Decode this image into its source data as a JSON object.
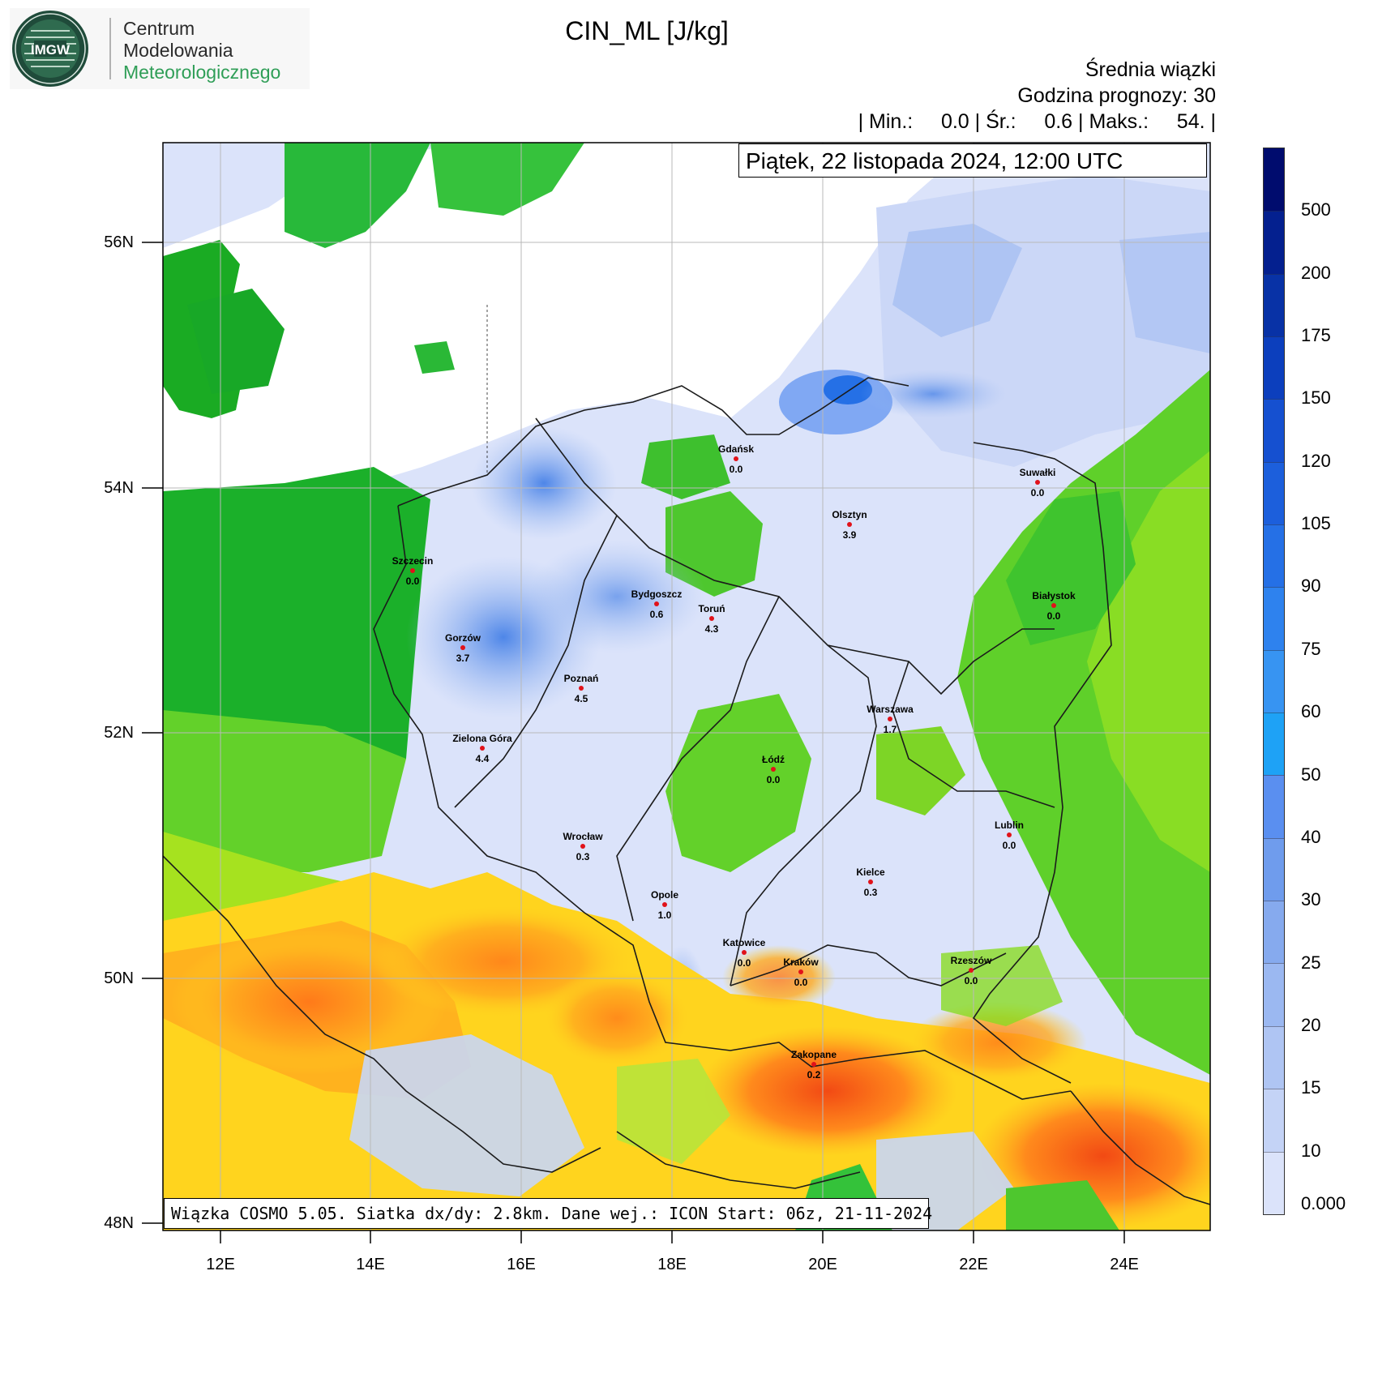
{
  "header": {
    "org_line1": "Centrum",
    "org_line2": "Modelowania",
    "org_line3": "Meteorologicznego",
    "logo_text": "IMGW"
  },
  "title": "CIN_ML [J/kg]",
  "info": {
    "line1": "Średnia wiązki",
    "line2": "Godzina prognozy: 30",
    "line3": "| Min.:     0.0 | Śr.:     0.6 | Maks.:     54. |"
  },
  "date_label": "Piątek, 22 listopada 2024, 12:00 UTC",
  "footer": "Wiązka COSMO 5.05. Siatka dx/dy: 2.8km. Dane wej.: ICON Start: 06z, 21-11-2024",
  "axes": {
    "lat_labels": [
      "56N",
      "54N",
      "52N",
      "50N",
      "48N"
    ],
    "lon_labels": [
      "12E",
      "14E",
      "16E",
      "18E",
      "20E",
      "22E",
      "24E"
    ]
  },
  "colorbar": {
    "labels": [
      "500",
      "200",
      "175",
      "150",
      "120",
      "105",
      "90",
      "75",
      "60",
      "50",
      "40",
      "30",
      "25",
      "20",
      "15",
      "10",
      "0.000"
    ],
    "colors": [
      "#000c6e",
      "#04208f",
      "#0832a6",
      "#0c3fbd",
      "#1550d0",
      "#1c5fdc",
      "#2570e6",
      "#2e82ee",
      "#3794f2",
      "#1ea2f6",
      "#5a8ff0",
      "#6f9ced",
      "#86aaee",
      "#9bb8f1",
      "#afc5f3",
      "#c4d3f6",
      "#dbe3fa"
    ]
  },
  "cities": [
    {
      "name": "Gdańsk",
      "value": "0.0"
    },
    {
      "name": "Suwałki",
      "value": "0.0"
    },
    {
      "name": "Olsztyn",
      "value": "3.9"
    },
    {
      "name": "Szczecin",
      "value": "0.0"
    },
    {
      "name": "Bydgoszcz",
      "value": "0.6"
    },
    {
      "name": "Toruń",
      "value": "4.3"
    },
    {
      "name": "Białystok",
      "value": "0.0"
    },
    {
      "name": "Gorzów",
      "value": "3.7"
    },
    {
      "name": "Poznań",
      "value": "4.5"
    },
    {
      "name": "Warszawa",
      "value": "1.7"
    },
    {
      "name": "Zielona Góra",
      "value": "4.4"
    },
    {
      "name": "Łódź",
      "value": "0.0"
    },
    {
      "name": "Wrocław",
      "value": "0.3"
    },
    {
      "name": "Lublin",
      "value": "0.0"
    },
    {
      "name": "Kielce",
      "value": "0.3"
    },
    {
      "name": "Opole",
      "value": "1.0"
    },
    {
      "name": "Katowice",
      "value": "0.0"
    },
    {
      "name": "Kraków",
      "value": "0.0"
    },
    {
      "name": "Rzeszów",
      "value": "0.0"
    },
    {
      "name": "Zakopane",
      "value": "0.2"
    }
  ]
}
